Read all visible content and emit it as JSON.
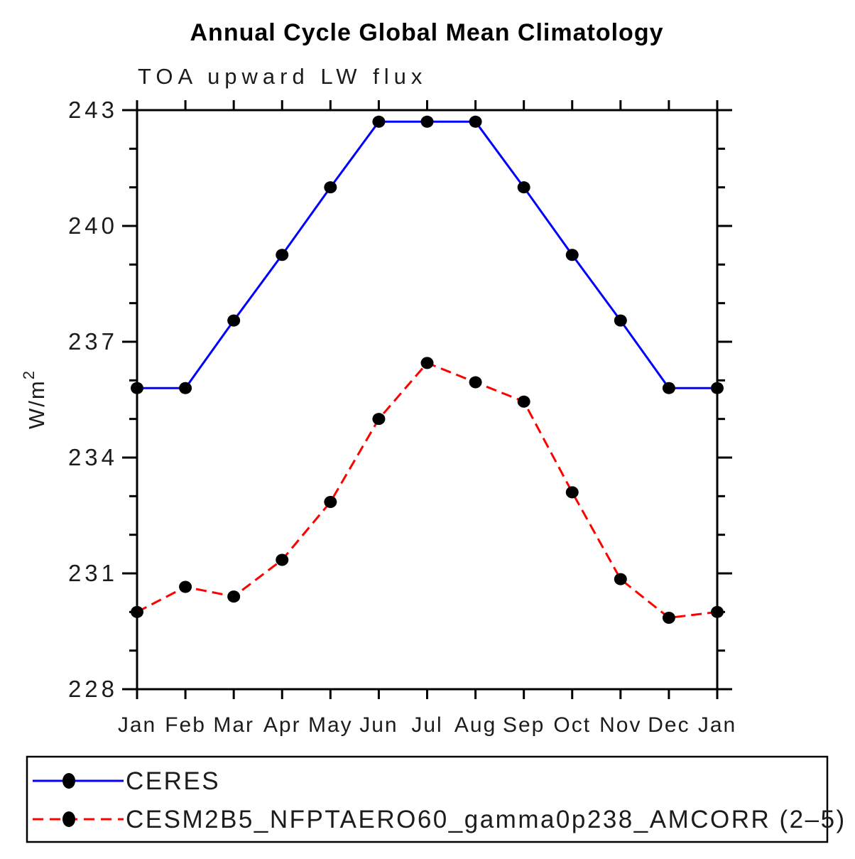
{
  "title": "Annual Cycle Global Mean Climatology",
  "chart_data": {
    "type": "line",
    "subtitle": "TOA upward LW flux",
    "ylabel_base": "W/m",
    "ylabel_sup": "2",
    "categories": [
      "Jan",
      "Feb",
      "Mar",
      "Apr",
      "May",
      "Jun",
      "Jul",
      "Aug",
      "Sep",
      "Oct",
      "Nov",
      "Dec",
      "Jan"
    ],
    "ylim": [
      228,
      243
    ],
    "ytick_major": [
      228,
      231,
      234,
      237,
      240,
      243
    ],
    "ytick_major_labels": [
      "228",
      "231",
      "234",
      "237",
      "240",
      "243"
    ],
    "ytick_minor_step": 1,
    "grid": false,
    "legend_position": "bottom-box",
    "series": [
      {
        "name": "CERES",
        "color": "#0000ff",
        "line_style": "solid",
        "marker": "filled-circle",
        "marker_color": "#000000",
        "values": [
          235.8,
          235.8,
          237.55,
          239.25,
          241.0,
          242.7,
          242.7,
          242.7,
          241.0,
          239.25,
          237.55,
          235.8,
          235.8
        ]
      },
      {
        "name": "CESM2B5_NFPTAERO60_gamma0p238_AMCORR (2–5)",
        "color": "#ff0000",
        "line_style": "dashed",
        "marker": "filled-circle",
        "marker_color": "#000000",
        "values": [
          230.0,
          230.65,
          230.4,
          231.35,
          232.85,
          235.0,
          236.45,
          235.95,
          235.45,
          233.1,
          230.85,
          229.85,
          230.0
        ]
      }
    ]
  },
  "colors": {
    "axis": "#000000",
    "text": "#1c1c1c",
    "title": "#000000",
    "background": "#ffffff",
    "ceres_line": "#0000ff",
    "model_line": "#ff0000",
    "marker": "#000000"
  }
}
